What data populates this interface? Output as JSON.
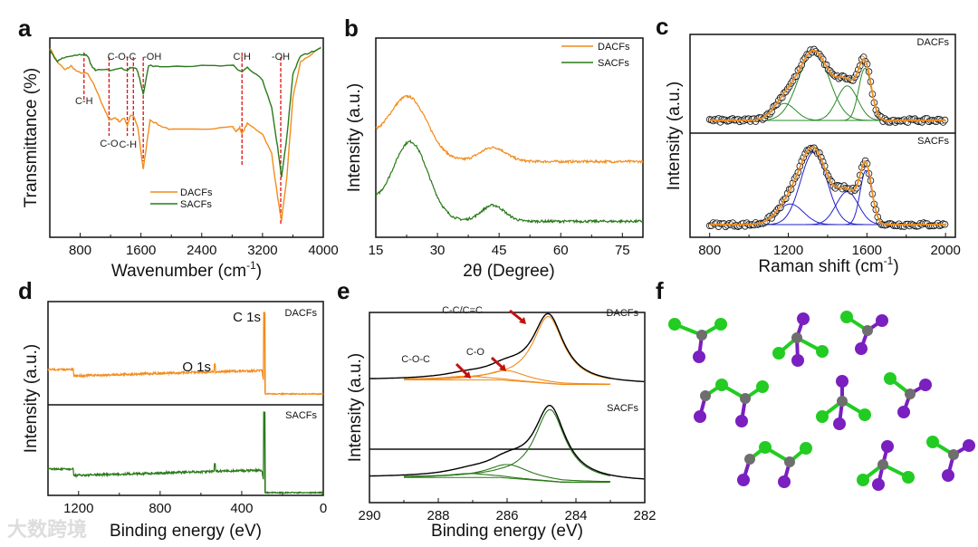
{
  "colors": {
    "DACFs": "#f28c1b",
    "SACFs": "#2a7a1a",
    "fitRamanSACFs": "#2222cc",
    "fitRamanDACFs": "#2a8a2a",
    "envelope": "#000000",
    "marker": "#dd1111"
  },
  "watermark": "大数跨境",
  "chart_data": [
    {
      "panel": "a",
      "type": "line",
      "xlabel": "Wavenumber (cm-1)",
      "xlabel_main": "Wavenumber (cm",
      "xlabel_sup": "-1",
      "xlabel_end": ")",
      "ylabel": "Transmittance (%)",
      "xlim": [
        400,
        4000
      ],
      "ylim": [
        0,
        100
      ],
      "xticks": [
        "800",
        "1600",
        "2400",
        "3200",
        "4000"
      ],
      "legend": {
        "placement": "bottom-left",
        "entries": [
          "DACFs",
          "SACFs"
        ]
      },
      "series": [
        {
          "name": "DACFs",
          "points": [
            [
              400,
              95
            ],
            [
              500,
              88
            ],
            [
              600,
              84
            ],
            [
              680,
              86
            ],
            [
              760,
              83
            ],
            [
              900,
              82
            ],
            [
              1000,
              75
            ],
            [
              1100,
              66
            ],
            [
              1180,
              59
            ],
            [
              1260,
              60
            ],
            [
              1320,
              58
            ],
            [
              1380,
              60
            ],
            [
              1420,
              56
            ],
            [
              1460,
              61
            ],
            [
              1500,
              61
            ],
            [
              1560,
              55
            ],
            [
              1630,
              34
            ],
            [
              1720,
              59
            ],
            [
              1850,
              56
            ],
            [
              2000,
              54
            ],
            [
              2400,
              54
            ],
            [
              2800,
              56
            ],
            [
              2850,
              53
            ],
            [
              2900,
              55
            ],
            [
              2930,
              52
            ],
            [
              3000,
              57
            ],
            [
              3200,
              52
            ],
            [
              3320,
              42
            ],
            [
              3400,
              20
            ],
            [
              3450,
              8
            ],
            [
              3520,
              30
            ],
            [
              3600,
              70
            ],
            [
              3700,
              88
            ],
            [
              3850,
              92
            ],
            [
              4000,
              96
            ]
          ]
        },
        {
          "name": "SACFs",
          "points": [
            [
              400,
              94
            ],
            [
              500,
              88
            ],
            [
              560,
              90
            ],
            [
              700,
              91
            ],
            [
              850,
              92
            ],
            [
              900,
              91
            ],
            [
              960,
              85
            ],
            [
              1000,
              84
            ],
            [
              1200,
              84
            ],
            [
              1300,
              85
            ],
            [
              1420,
              84
            ],
            [
              1460,
              85
            ],
            [
              1540,
              85
            ],
            [
              1580,
              80
            ],
            [
              1630,
              72
            ],
            [
              1700,
              86
            ],
            [
              1850,
              86
            ],
            [
              2400,
              86
            ],
            [
              2820,
              86
            ],
            [
              2880,
              84
            ],
            [
              2930,
              83
            ],
            [
              3000,
              85
            ],
            [
              3200,
              79
            ],
            [
              3320,
              65
            ],
            [
              3400,
              45
            ],
            [
              3450,
              30
            ],
            [
              3520,
              50
            ],
            [
              3600,
              82
            ],
            [
              3700,
              91
            ],
            [
              3850,
              93
            ],
            [
              4000,
              96
            ]
          ]
        }
      ],
      "annotations": [
        {
          "x": 850,
          "label": "C-H"
        },
        {
          "x": 1180,
          "label": "C-O"
        },
        {
          "x": 1420,
          "label": "C-O-C"
        },
        {
          "x": 1500,
          "label": "C-H"
        },
        {
          "x": 1630,
          "label": "-OH"
        },
        {
          "x": 2930,
          "label": "C-H"
        },
        {
          "x": 3440,
          "label": "-OH"
        }
      ]
    },
    {
      "panel": "b",
      "type": "line",
      "xlabel": "2θ (Degree)",
      "ylabel": "Intensity (a.u.)",
      "xlim": [
        15,
        80
      ],
      "xticks": [
        "15",
        "30",
        "45",
        "60",
        "75"
      ],
      "legend": {
        "placement": "top-right",
        "entries": [
          "DACFs",
          "SACFs"
        ]
      },
      "series": [
        {
          "name": "DACFs",
          "offset": 38,
          "peaks": [
            {
              "center": 23,
              "height": 30,
              "width": 6.5
            },
            {
              "center": 43.5,
              "height": 7,
              "width": 4.5
            }
          ],
          "decay": 10
        },
        {
          "name": "SACFs",
          "offset": 8,
          "peaks": [
            {
              "center": 23.5,
              "height": 38,
              "width": 6
            },
            {
              "center": 43.5,
              "height": 8,
              "width": 4
            }
          ],
          "decay": 8
        }
      ]
    },
    {
      "panel": "c",
      "type": "scatter",
      "xlabel": "Raman shift (cm-1)",
      "xlabel_main": "Raman shift (cm",
      "xlabel_sup": "-1",
      "xlabel_end": ")",
      "ylabel": "Intensity (a.u.)",
      "xlim": [
        700,
        2050
      ],
      "xticks": [
        "800",
        "1200",
        "1600",
        "2000"
      ],
      "subpanels": [
        {
          "name": "DACFs",
          "components": [
            {
              "center": 1180,
              "height": 0.22,
              "width": 80
            },
            {
              "center": 1330,
              "height": 0.9,
              "width": 110
            },
            {
              "center": 1500,
              "height": 0.45,
              "width": 75
            },
            {
              "center": 1590,
              "height": 0.68,
              "width": 45
            }
          ]
        },
        {
          "name": "SACFs",
          "components": [
            {
              "center": 1210,
              "height": 0.25,
              "width": 95
            },
            {
              "center": 1330,
              "height": 0.88,
              "width": 95
            },
            {
              "center": 1500,
              "height": 0.4,
              "width": 80
            },
            {
              "center": 1595,
              "height": 0.66,
              "width": 42
            }
          ]
        }
      ]
    },
    {
      "panel": "d",
      "type": "line",
      "xlabel": "Binding energy (eV)",
      "ylabel": "Intensity (a.u.)",
      "xlim": [
        1350,
        0
      ],
      "xticks": [
        "1200",
        "800",
        "400",
        "0"
      ],
      "subpanels": [
        {
          "name": "DACFs",
          "peak_labels": [
            "C 1s",
            "O 1s"
          ],
          "peaks": [
            {
              "x": 285,
              "label": "C 1s"
            },
            {
              "x": 532,
              "label": "O 1s"
            }
          ]
        },
        {
          "name": "SACFs",
          "peaks": [
            {
              "x": 285
            },
            {
              "x": 532
            }
          ]
        }
      ]
    },
    {
      "panel": "e",
      "type": "line",
      "xlabel": "Binding energy (eV)",
      "ylabel": "Intensity (a.u.)",
      "xlim": [
        290,
        282
      ],
      "xticks": [
        "290",
        "288",
        "286",
        "284",
        "282"
      ],
      "subpanels": [
        {
          "name": "DACFs",
          "components": [
            {
              "label": "C-C/C=C",
              "center": 284.8,
              "height": 0.88,
              "width": 0.55
            },
            {
              "label": "C-O",
              "center": 286.0,
              "height": 0.13,
              "width": 0.7
            },
            {
              "label": "C-O-C",
              "center": 287.2,
              "height": 0.05,
              "width": 0.8
            }
          ]
        },
        {
          "name": "SACFs",
          "components": [
            {
              "center": 284.75,
              "height": 0.9,
              "width": 0.55
            },
            {
              "center": 285.95,
              "height": 0.17,
              "width": 0.75
            },
            {
              "center": 287.1,
              "height": 0.05,
              "width": 0.8
            }
          ]
        }
      ]
    },
    {
      "panel": "f",
      "type": "diagram",
      "caption": "molecular structures",
      "atoms": {
        "carbon": "#6e6e6e",
        "green": "#22cc22",
        "purple": "#7a1fc0"
      }
    }
  ],
  "panel_labels": [
    "a",
    "b",
    "c",
    "d",
    "e",
    "f"
  ]
}
